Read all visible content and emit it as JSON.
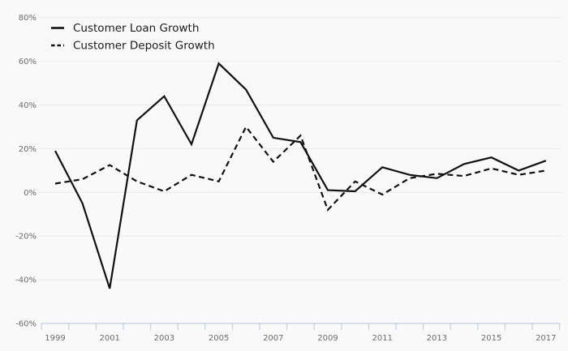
{
  "chart_data": {
    "type": "line",
    "title": "",
    "xlabel": "",
    "ylabel": "",
    "x": [
      1999,
      2000,
      2001,
      2002,
      2003,
      2004,
      2005,
      2006,
      2007,
      2008,
      2009,
      2010,
      2011,
      2012,
      2013,
      2014,
      2015,
      2016,
      2017
    ],
    "series": [
      {
        "name": "Customer Loan Growth",
        "style": "solid",
        "values": [
          19,
          -5,
          -44,
          33,
          44,
          22,
          59,
          47,
          25,
          23,
          1,
          0.5,
          11.5,
          8,
          6.5,
          13,
          16,
          10,
          14.5
        ]
      },
      {
        "name": "Customer Deposit Growth",
        "style": "dashed",
        "values": [
          4,
          6,
          12.5,
          5,
          0.5,
          8,
          5,
          30,
          14,
          26,
          -8,
          5,
          -1,
          6.5,
          8.5,
          7.5,
          11,
          8,
          10
        ]
      }
    ],
    "ylim": [
      -60,
      80
    ],
    "y_tick_values": [
      80,
      60,
      40,
      20,
      0,
      -20,
      -40,
      -60
    ],
    "y_ticks": [
      "80%",
      "60%",
      "40%",
      "20%",
      "0%",
      "-20%",
      "-40%",
      "-60%"
    ],
    "x_tick_labels": [
      "1999",
      "2001",
      "2003",
      "2005",
      "2007",
      "2009",
      "2011",
      "2013",
      "2015",
      "2017"
    ],
    "grid": true,
    "legend_position": "top-left",
    "colors": {
      "line": "#111111",
      "grid": "#e9e9e9",
      "axis": "#b9c5d8",
      "tick_text": "#6b6b6b",
      "legend_text": "#1a1a1a",
      "background": "#f9f9f9"
    }
  }
}
